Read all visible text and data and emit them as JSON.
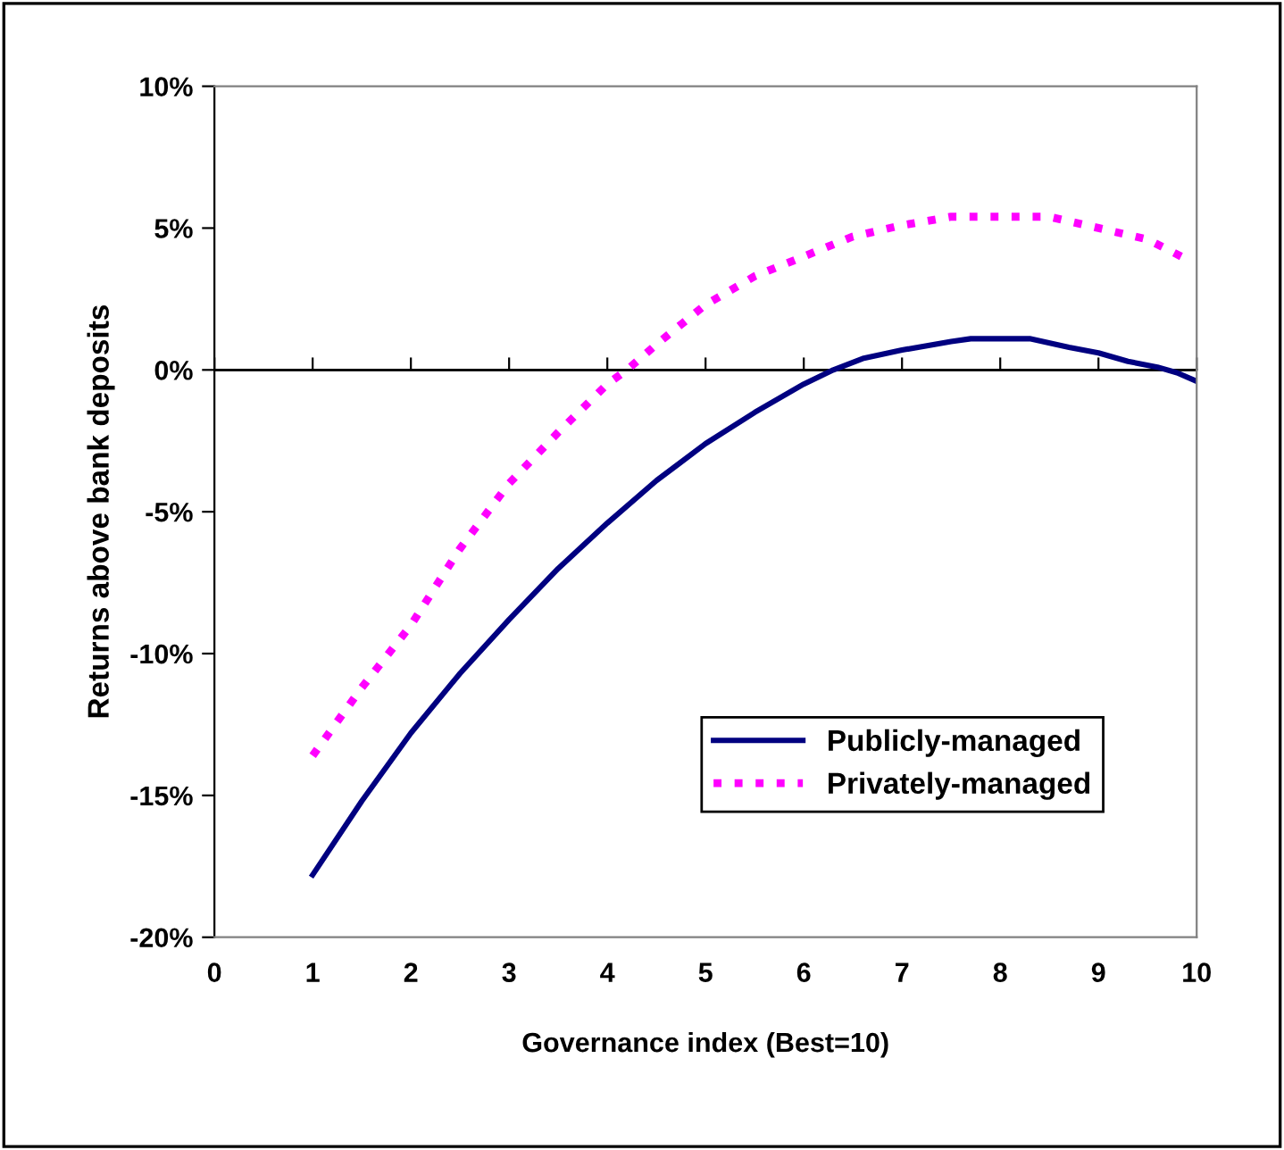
{
  "chart_data": {
    "type": "line",
    "xlabel": "Governance index (Best=10)",
    "ylabel": "Returns above bank deposits",
    "xlim": [
      0,
      10
    ],
    "xticks": [
      0,
      1,
      2,
      3,
      4,
      5,
      6,
      7,
      8,
      9,
      10
    ],
    "ylim": [
      -20,
      10
    ],
    "yticks": [
      {
        "value": -20,
        "label": "-20%"
      },
      {
        "value": -15,
        "label": "-15%"
      },
      {
        "value": -10,
        "label": "-10%"
      },
      {
        "value": -5,
        "label": "-5%"
      },
      {
        "value": 0,
        "label": "0%"
      },
      {
        "value": 5,
        "label": "5%"
      },
      {
        "value": 10,
        "label": "10%"
      }
    ],
    "ref_lines": [
      {
        "axis": "y",
        "value": 0,
        "color": "#000000",
        "line_style": "solid"
      }
    ],
    "legend": "bottom right",
    "marker": "none",
    "series": [
      {
        "name": "Publicly-managed",
        "color": "#000080",
        "line_style": "solid",
        "x": [
          1,
          1.5,
          2,
          2.5,
          3,
          3.5,
          4,
          4.5,
          5,
          5.5,
          6,
          6.3,
          6.6,
          7,
          7.5,
          7.7,
          8,
          8.3,
          8.7,
          9,
          9.3,
          9.6,
          9.8,
          10
        ],
        "values": [
          -17.8,
          -15.2,
          -12.8,
          -10.7,
          -8.8,
          -7.0,
          -5.4,
          -3.9,
          -2.6,
          -1.5,
          -0.5,
          0,
          0.4,
          0.7,
          1.0,
          1.1,
          1.1,
          1.1,
          0.8,
          0.6,
          0.3,
          0.1,
          -0.1,
          -0.4
        ]
      },
      {
        "name": "Privately-managed",
        "color": "#ff00ff",
        "line_style": "dotted",
        "x": [
          1,
          1.5,
          2,
          2.5,
          3,
          3.5,
          4,
          4.2,
          4.5,
          5,
          5.5,
          6,
          6.5,
          7,
          7.5,
          8,
          8.5,
          9,
          9.5,
          9.9
        ],
        "values": [
          -13.6,
          -11.2,
          -9.0,
          -6.3,
          -4.0,
          -2.2,
          -0.5,
          0,
          0.9,
          2.3,
          3.3,
          4.0,
          4.7,
          5.1,
          5.4,
          5.4,
          5.4,
          5.0,
          4.6,
          3.9
        ]
      }
    ]
  }
}
